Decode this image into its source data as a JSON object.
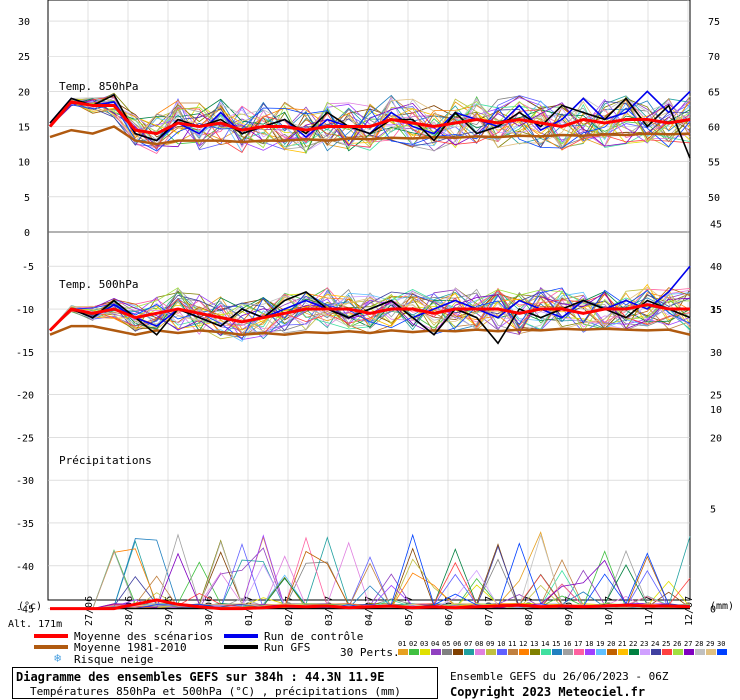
{
  "chart_data": {
    "type": "line",
    "title": "Diagramme des ensembles GEFS sur 384h : 44.3N 11.9E",
    "subtitle": "Températures 850hPa et 500hPa (°C) , précipitations (mm)",
    "run_info": "Ensemble GEFS du 26/06/2023 - 06Z",
    "copyright": "Copyright 2023 Meteociel.fr",
    "altitude": "Alt. 171m",
    "left_unit": "(°c)",
    "right_unit": "(mm)",
    "dates": [
      "27/06",
      "28/06",
      "29/06",
      "30/06",
      "01/07",
      "02/07",
      "03/07",
      "04/07",
      "05/07",
      "06/07",
      "07/07",
      "08/07",
      "09/07",
      "10/07",
      "11/07",
      "12/07"
    ],
    "left_ticks_top": [
      30,
      25,
      20,
      15,
      10,
      5,
      0
    ],
    "right_ticks_top": [
      75,
      70,
      65,
      60,
      55,
      50
    ],
    "left_ticks_bottom": [
      -5,
      -10,
      -15,
      -20,
      -25,
      -30,
      -35,
      -40,
      -45
    ],
    "right_ticks_bottom": [
      45,
      40,
      35,
      30,
      25,
      20,
      15,
      10,
      5,
      0
    ],
    "panels": [
      {
        "label": "Temp. 850hPa",
        "ylim": [
          0,
          33
        ],
        "unit": "°C"
      },
      {
        "label": "Temp. 500hPa",
        "ylim": [
          -44,
          -1
        ],
        "unit": "°C"
      },
      {
        "label": "Précipitations",
        "ylim": [
          0,
          15
        ],
        "unit": "mm"
      }
    ],
    "mean_850": [
      15,
      18.5,
      18,
      18,
      14.5,
      14,
      15.5,
      15,
      15.5,
      14.5,
      15,
      15,
      14.5,
      15,
      15,
      15,
      16,
      15.5,
      15,
      15.5,
      16,
      15.5,
      16,
      15.5,
      15,
      16,
      15.5,
      16,
      16,
      15.5,
      16
    ],
    "clim_850": [
      13.5,
      14.5,
      14,
      15,
      13,
      12.5,
      13,
      13,
      13,
      12.8,
      13,
      13,
      13.2,
      13,
      13.3,
      13.2,
      13.4,
      13.3,
      13.5,
      13.4,
      13.6,
      13.5,
      13.7,
      13.6,
      13.8,
      13.7,
      13.9,
      13.8,
      14,
      13.9,
      14
    ],
    "control_850": [
      15.5,
      19,
      18,
      18.5,
      14,
      13,
      15.5,
      14,
      17,
      14,
      15,
      16,
      13.5,
      16,
      15,
      14,
      17,
      15,
      14,
      17,
      16,
      15,
      18,
      14.5,
      16,
      19,
      16,
      17,
      20,
      17,
      20
    ],
    "gfs_850": [
      15.5,
      19,
      18,
      19.5,
      14,
      13,
      16,
      15,
      16,
      14,
      15,
      16,
      14,
      17,
      15,
      14,
      16,
      16,
      13,
      17,
      14,
      15,
      17,
      15,
      18,
      17,
      16,
      19,
      15,
      18,
      10.5
    ],
    "mean_500": [
      -12.5,
      -10,
      -10.5,
      -10,
      -11,
      -10.5,
      -10,
      -10.5,
      -11,
      -11.5,
      -11,
      -10.5,
      -10,
      -10,
      -10,
      -10.5,
      -10,
      -10,
      -10.5,
      -10,
      -10,
      -10,
      -10.5,
      -10,
      -10,
      -10.5,
      -10,
      -10,
      -9.5,
      -10,
      -10
    ],
    "clim_500": [
      -13,
      -12,
      -12,
      -12.5,
      -13,
      -12.5,
      -12.8,
      -12.5,
      -12.7,
      -13,
      -12.8,
      -13,
      -12.7,
      -12.8,
      -12.6,
      -12.8,
      -12.5,
      -12.7,
      -12.5,
      -12.6,
      -12.4,
      -12.6,
      -12.4,
      -12.5,
      -12.3,
      -12.4,
      -12.3,
      -12.4,
      -12.5,
      -12.4,
      -13
    ],
    "control_500": [
      -12.5,
      -10,
      -11,
      -9.5,
      -11,
      -12,
      -10,
      -11,
      -12,
      -10,
      -11,
      -10,
      -9,
      -10,
      -11,
      -10,
      -9,
      -11,
      -10,
      -9,
      -10,
      -11,
      -9,
      -10,
      -11,
      -9,
      -10,
      -9,
      -10,
      -8,
      -5
    ],
    "gfs_500": [
      -12.5,
      -10,
      -11,
      -9,
      -11,
      -13,
      -10,
      -11,
      -12,
      -10,
      -11,
      -9,
      -8,
      -10,
      -11,
      -10,
      -9,
      -11,
      -13,
      -10,
      -11,
      -14,
      -10,
      -11,
      -10,
      -9,
      -10,
      -11,
      -9,
      -10,
      -11
    ],
    "mean_precip": [
      0,
      0,
      0,
      0,
      0.5,
      1,
      0.5,
      0.2,
      0,
      0,
      0.1,
      0.3,
      0.2,
      0.3,
      0.1,
      0.2,
      0.3,
      0.1,
      0.2,
      0.1,
      0.2,
      0.3,
      0.4,
      0.2,
      0.3,
      0.2,
      0.3,
      0.4,
      0.3,
      0.3,
      0.2
    ],
    "gfs_precip": [
      0,
      0,
      0,
      0,
      0,
      0,
      0,
      0,
      0,
      0,
      0,
      0,
      0,
      0,
      0,
      0,
      0,
      0,
      0,
      0,
      0,
      0,
      0,
      0,
      0,
      0,
      0,
      0,
      0,
      0,
      0
    ],
    "members": 30,
    "legend": [
      {
        "label": "Moyenne des scénarios",
        "color": "#ff0000"
      },
      {
        "label": "Moyenne 1981-2010",
        "color": "#b05a10"
      },
      {
        "label": "Risque neige",
        "color": "#4aa0e0"
      },
      {
        "label": "Run de contrôle",
        "color": "#0000ee"
      },
      {
        "label": "Run GFS",
        "color": "#000000"
      }
    ],
    "perts_label": "30 Perts.",
    "member_numbers": [
      "01",
      "02",
      "03",
      "04",
      "05",
      "06",
      "07",
      "08",
      "09",
      "10",
      "11",
      "12",
      "13",
      "14",
      "15",
      "16",
      "17",
      "18",
      "19",
      "20",
      "21",
      "22",
      "23",
      "24",
      "25",
      "26",
      "27",
      "28",
      "29",
      "30"
    ],
    "member_colors": [
      "#e6a020",
      "#40c040",
      "#e0e000",
      "#9040c0",
      "#808080",
      "#804000",
      "#20a0a0",
      "#e080e0",
      "#c0c040",
      "#6060ff",
      "#c08040",
      "#ff8000",
      "#808000",
      "#40e0a0",
      "#2080c0",
      "#a0a0a0",
      "#ff60a0",
      "#a040ff",
      "#60c0ff",
      "#c06000",
      "#ffc000",
      "#008040",
      "#d0a0ff",
      "#4040a0",
      "#ff4040",
      "#a0e040",
      "#8000c0",
      "#c0c0c0",
      "#e0c080",
      "#0040ff"
    ]
  }
}
